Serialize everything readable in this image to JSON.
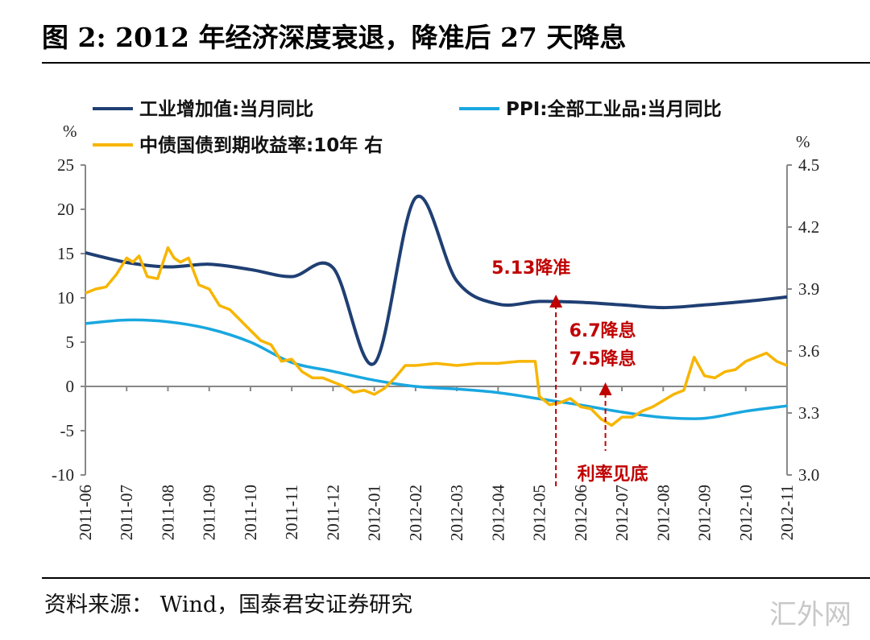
{
  "title": "图 2:  2012 年经济深度衰退，降准后 27 天降息",
  "source": "资料来源：  Wind，国泰君安证券研究",
  "watermark": "汇外网",
  "chart_data": {
    "type": "line",
    "categories": [
      "2011-06",
      "2011-07",
      "2011-08",
      "2011-09",
      "2011-10",
      "2011-11",
      "2011-12",
      "2012-01",
      "2012-02",
      "2012-03",
      "2012-04",
      "2012-05",
      "2012-06",
      "2012-07",
      "2012-08",
      "2012-09",
      "2012-10",
      "2012-11"
    ],
    "left_axis": {
      "unit": "%",
      "ylim": [
        -10,
        25
      ],
      "ticks": [
        "25",
        "20",
        "15",
        "10",
        "5",
        "0",
        "-5",
        "-10"
      ],
      "tick_values": [
        25,
        20,
        15,
        10,
        5,
        0,
        -5,
        -10
      ]
    },
    "right_axis": {
      "unit": "%",
      "ylim": [
        3.0,
        4.5
      ],
      "ticks": [
        "4.5",
        "4.2",
        "3.9",
        "3.6",
        "3.3",
        "3.0"
      ],
      "tick_values": [
        4.5,
        4.2,
        3.9,
        3.6,
        3.3,
        3.0
      ]
    },
    "series": [
      {
        "name": "工业增加值:当月同比",
        "axis": "left",
        "color": "#1f3f73",
        "smooth": true,
        "values": [
          15.1,
          14.0,
          13.5,
          13.8,
          13.2,
          12.4,
          13.4,
          2.6,
          21.3,
          11.9,
          9.3,
          9.6,
          9.5,
          9.2,
          8.9,
          9.2,
          9.6,
          10.1
        ]
      },
      {
        "name": "PPI:全部工业品:当月同比",
        "axis": "left",
        "color": "#19a7e0",
        "smooth": true,
        "values": [
          7.1,
          7.5,
          7.3,
          6.5,
          5.0,
          2.7,
          1.7,
          0.7,
          0.0,
          -0.3,
          -0.7,
          -1.4,
          -2.1,
          -2.9,
          -3.5,
          -3.6,
          -2.8,
          -2.2
        ]
      },
      {
        "name": "中债国债到期收益率:10年 右",
        "axis": "right",
        "color": "#f7b500",
        "smooth": false,
        "x": [
          0,
          0.25,
          0.5,
          0.75,
          1,
          1.15,
          1.3,
          1.5,
          1.75,
          2,
          2.15,
          2.3,
          2.5,
          2.75,
          3,
          3.25,
          3.5,
          3.75,
          4,
          4.25,
          4.5,
          4.75,
          5,
          5.25,
          5.5,
          5.75,
          6,
          6.25,
          6.5,
          6.75,
          7,
          7.25,
          7.5,
          7.75,
          8,
          8.5,
          9,
          9.5,
          10,
          10.5,
          10.9,
          11,
          11.25,
          11.5,
          11.75,
          12,
          12.25,
          12.5,
          12.75,
          13,
          13.25,
          13.5,
          13.75,
          14,
          14.25,
          14.5,
          14.75,
          15,
          15.25,
          15.5,
          15.75,
          16,
          16.25,
          16.5,
          16.75,
          17
        ],
        "values": [
          3.88,
          3.9,
          3.91,
          3.97,
          4.05,
          4.03,
          4.06,
          3.96,
          3.95,
          4.1,
          4.05,
          4.03,
          4.05,
          3.92,
          3.9,
          3.82,
          3.8,
          3.75,
          3.7,
          3.65,
          3.63,
          3.55,
          3.56,
          3.5,
          3.47,
          3.47,
          3.45,
          3.43,
          3.4,
          3.41,
          3.39,
          3.42,
          3.47,
          3.53,
          3.53,
          3.54,
          3.53,
          3.54,
          3.54,
          3.55,
          3.55,
          3.38,
          3.34,
          3.35,
          3.37,
          3.33,
          3.32,
          3.27,
          3.24,
          3.28,
          3.28,
          3.31,
          3.33,
          3.36,
          3.39,
          3.41,
          3.57,
          3.48,
          3.47,
          3.5,
          3.51,
          3.55,
          3.57,
          3.59,
          3.55,
          3.53
        ]
      }
    ],
    "annotations": [
      {
        "text": "5.13降准",
        "x": 11.4,
        "kind": "arrow-up"
      },
      {
        "text": "6.7降息",
        "x": 12.6,
        "kind": "label"
      },
      {
        "text": "7.5降息",
        "x": 12.6,
        "kind": "label"
      },
      {
        "text": "利率见底",
        "x": 12.6,
        "kind": "arrow-up"
      }
    ],
    "legend": "top"
  }
}
